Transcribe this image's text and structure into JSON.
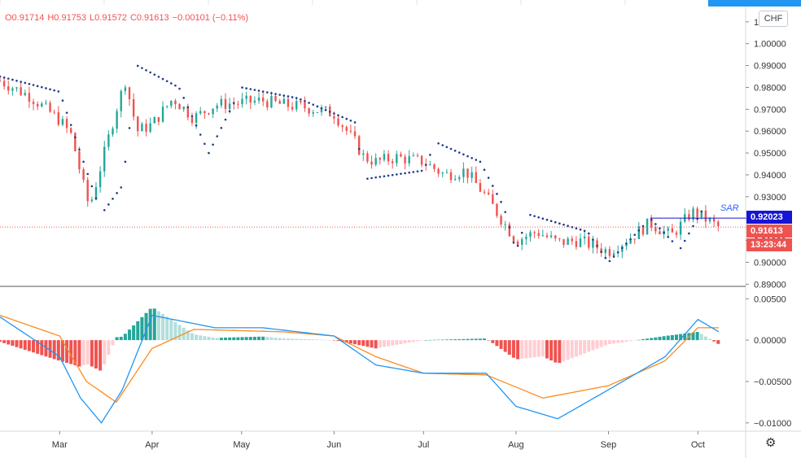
{
  "ohlc": {
    "open": "O0.91714",
    "high": "H0.91753",
    "low": "L0.91572",
    "close": "C0.91613",
    "change": "−0.00101 (−0.11%)"
  },
  "currency_label": "CHF",
  "sar_label": "SAR",
  "price_tags": {
    "sar_value": "0.92023",
    "last_price": "0.91613",
    "countdown": "13:23:44"
  },
  "colors": {
    "up": "#26a69a",
    "down": "#ef5350",
    "sar": "#1e3a8a",
    "macd": "#2196f3",
    "signal": "#ff8a1f",
    "hist_up_strong": "#26a69a",
    "hist_up_weak": "#b2dfdb",
    "hist_down_strong": "#ef5350",
    "hist_down_weak": "#ffcdd2",
    "sar_tag": "#1515d6",
    "price_tag": "#ef5350"
  },
  "chart_data": [
    {
      "type": "candlestick",
      "title": "",
      "ylim": [
        0.889,
        1.017
      ],
      "y_ticks": [
        "0.89000",
        "0.90000",
        "0.91000",
        "0.92000",
        "0.93000",
        "0.94000",
        "0.95000",
        "0.96000",
        "0.97000",
        "0.98000",
        "0.99000",
        "1.00000",
        "1."
      ],
      "x_ticks": [
        "Mar",
        "Apr",
        "May",
        "Jun",
        "Jul",
        "Aug",
        "Sep",
        "Oct"
      ],
      "series": [
        {
          "name": "price_close_approx",
          "points": [
            [
              "Feb 10",
              0.983
            ],
            [
              "Feb 20",
              0.976
            ],
            [
              "Mar 1",
              0.965
            ],
            [
              "Mar 5",
              0.958
            ],
            [
              "Mar 9",
              0.935
            ],
            [
              "Mar 11",
              0.925
            ],
            [
              "Mar 13",
              0.935
            ],
            [
              "Mar 17",
              0.955
            ],
            [
              "Mar 20",
              0.97
            ],
            [
              "Mar 23",
              0.983
            ],
            [
              "Mar 27",
              0.96
            ],
            [
              "Apr 1",
              0.963
            ],
            [
              "Apr 8",
              0.975
            ],
            [
              "Apr 15",
              0.966
            ],
            [
              "Apr 22",
              0.972
            ],
            [
              "May 1",
              0.973
            ],
            [
              "May 8",
              0.974
            ],
            [
              "May 15",
              0.972
            ],
            [
              "May 22",
              0.971
            ],
            [
              "Jun 1",
              0.968
            ],
            [
              "Jun 8",
              0.955
            ],
            [
              "Jun 11",
              0.948
            ],
            [
              "Jun 15",
              0.946
            ],
            [
              "Jun 22",
              0.948
            ],
            [
              "Jul 1",
              0.946
            ],
            [
              "Jul 8",
              0.94
            ],
            [
              "Jul 15",
              0.942
            ],
            [
              "Jul 22",
              0.93
            ],
            [
              "Jul 27",
              0.92
            ],
            [
              "Aug 1",
              0.91
            ],
            [
              "Aug 8",
              0.914
            ],
            [
              "Aug 15",
              0.909
            ],
            [
              "Aug 22",
              0.91
            ],
            [
              "Sep 1",
              0.905
            ],
            [
              "Sep 8",
              0.911
            ],
            [
              "Sep 15",
              0.918
            ],
            [
              "Sep 22",
              0.912
            ],
            [
              "Sep 29",
              0.923
            ],
            [
              "Oct 1",
              0.922
            ],
            [
              "Oct 8",
              0.916
            ]
          ]
        },
        {
          "name": "parabolic_sar_approx",
          "points": [
            [
              "Feb 10",
              0.985
            ],
            [
              "Mar 1",
              0.978
            ],
            [
              "Mar 15",
              0.922
            ],
            [
              "Mar 22",
              0.935
            ],
            [
              "Mar 27",
              0.99
            ],
            [
              "Apr 10",
              0.98
            ],
            [
              "Apr 20",
              0.95
            ],
            [
              "May 1",
              0.98
            ],
            [
              "May 20",
              0.975
            ],
            [
              "Jun 8",
              0.964
            ],
            [
              "Jun 11",
              0.938
            ],
            [
              "Jul 1",
              0.942
            ],
            [
              "Jul 5",
              0.955
            ],
            [
              "Jul 20",
              0.946
            ],
            [
              "Jul 28",
              0.925
            ],
            [
              "Aug 1",
              0.905
            ],
            [
              "Aug 5",
              0.922
            ],
            [
              "Aug 25",
              0.914
            ],
            [
              "Sep 1",
              0.9
            ],
            [
              "Sep 15",
              0.92
            ],
            [
              "Sep 25",
              0.906
            ],
            [
              "Oct 5",
              0.93
            ]
          ]
        }
      ]
    },
    {
      "type": "macd",
      "title": "",
      "ylim": [
        -0.011,
        0.0065
      ],
      "y_ticks": [
        "0.00500",
        "0.00000",
        "−0.00500",
        "−0.01000"
      ],
      "series": [
        {
          "name": "macd_line_approx",
          "points": [
            [
              "Feb 10",
              0.0028
            ],
            [
              "Mar 1",
              -0.002
            ],
            [
              "Mar 8",
              -0.007
            ],
            [
              "Mar 15",
              -0.01
            ],
            [
              "Mar 22",
              -0.006
            ],
            [
              "Apr 1",
              0.003
            ],
            [
              "Apr 8",
              0.0025
            ],
            [
              "Apr 22",
              0.0015
            ],
            [
              "May 8",
              0.0015
            ],
            [
              "Jun 1",
              0.0005
            ],
            [
              "Jun 15",
              -0.003
            ],
            [
              "Jul 1",
              -0.004
            ],
            [
              "Jul 22",
              -0.004
            ],
            [
              "Aug 1",
              -0.008
            ],
            [
              "Aug 15",
              -0.0095
            ],
            [
              "Sep 1",
              -0.006
            ],
            [
              "Sep 20",
              -0.002
            ],
            [
              "Oct 1",
              0.0025
            ],
            [
              "Oct 8",
              0.001
            ]
          ]
        },
        {
          "name": "signal_line_approx",
          "points": [
            [
              "Feb 10",
              0.003
            ],
            [
              "Mar 1",
              0.0005
            ],
            [
              "Mar 10",
              -0.005
            ],
            [
              "Mar 20",
              -0.0075
            ],
            [
              "Apr 1",
              -0.001
            ],
            [
              "Apr 15",
              0.0013
            ],
            [
              "May 15",
              0.001
            ],
            [
              "Jun 1",
              0.0005
            ],
            [
              "Jun 15",
              -0.002
            ],
            [
              "Jul 1",
              -0.004
            ],
            [
              "Jul 22",
              -0.0042
            ],
            [
              "Aug 10",
              -0.007
            ],
            [
              "Sep 1",
              -0.0055
            ],
            [
              "Sep 20",
              -0.0025
            ],
            [
              "Oct 1",
              0.0015
            ],
            [
              "Oct 8",
              0.0015
            ]
          ]
        }
      ]
    }
  ]
}
